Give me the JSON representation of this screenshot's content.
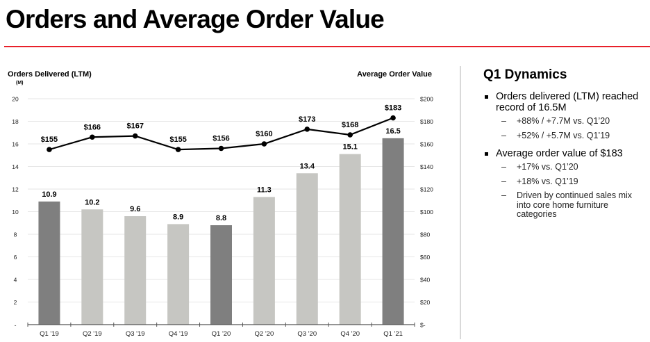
{
  "page": {
    "title": "Orders and Average Order Value"
  },
  "sidebar": {
    "heading": "Q1 Dynamics",
    "groups": [
      {
        "bullet": "Orders delivered (LTM) reached record of 16.5M",
        "subs": [
          "+88% / +7.7M vs. Q1’20",
          "+52% / +5.7M vs. Q1’19"
        ]
      },
      {
        "bullet": "Average order value of $183",
        "subs": [
          "+17% vs. Q1’20",
          "+18% vs. Q1’19",
          "Driven by continued sales mix into core home furniture categories"
        ]
      }
    ],
    "dash_glyph": "–"
  },
  "chart_data": {
    "type": "bar",
    "title": "",
    "left_axis_label": "Orders Delivered (LTM)",
    "left_axis_unit": "(M)",
    "right_axis_label": "Average Order Value",
    "categories": [
      "Q1 '19",
      "Q2 '19",
      "Q3 '19",
      "Q4 '19",
      "Q1 '20",
      "Q2 '20",
      "Q3 '20",
      "Q4 '20",
      "Q1 '21"
    ],
    "series": [
      {
        "name": "Orders Delivered (LTM)",
        "kind": "bar",
        "axis": "left",
        "values": [
          10.9,
          10.2,
          9.6,
          8.9,
          8.8,
          11.3,
          13.4,
          15.1,
          16.5
        ],
        "labels": [
          "10.9",
          "10.2",
          "9.6",
          "8.9",
          "8.8",
          "11.3",
          "13.4",
          "15.1",
          "16.5"
        ],
        "highlight": [
          true,
          false,
          false,
          false,
          true,
          false,
          false,
          false,
          true
        ]
      },
      {
        "name": "Average Order Value",
        "kind": "line",
        "axis": "right",
        "values": [
          155,
          166,
          167,
          155,
          156,
          160,
          173,
          168,
          183
        ],
        "labels": [
          "$155",
          "$166",
          "$167",
          "$155",
          "$156",
          "$160",
          "$173",
          "$168",
          "$183"
        ]
      }
    ],
    "left_ylim": [
      0,
      20
    ],
    "left_ticks": [
      "-",
      "2",
      "4",
      "6",
      "8",
      "10",
      "12",
      "14",
      "16",
      "18",
      "20"
    ],
    "right_ylim": [
      0,
      200
    ],
    "right_ticks": [
      "$-",
      "$20",
      "$40",
      "$60",
      "$80",
      "$100",
      "$120",
      "$140",
      "$160",
      "$180",
      "$200"
    ],
    "grid": true,
    "colors": {
      "highlight_bar": "#7f7f7f",
      "normal_bar": "#c6c6c2",
      "line": "#000000",
      "grid": "#e6e6e6",
      "accent_rule": "#e8202a"
    }
  }
}
